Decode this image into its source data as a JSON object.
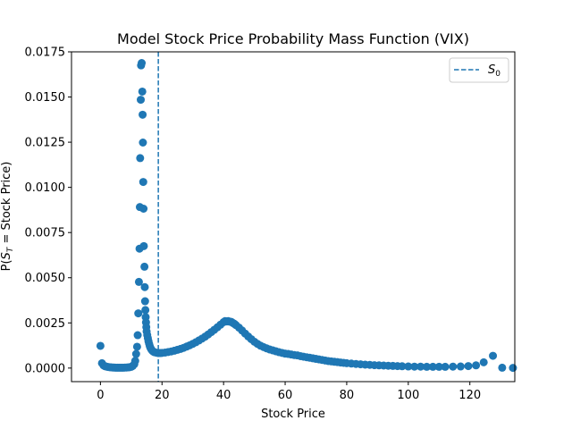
{
  "chart_data": {
    "type": "scatter",
    "title": "Model Stock Price Probability Mass Function (VIX)",
    "xlabel": "Stock Price",
    "ylabel": "P(S_T = Stock Price)",
    "ylabel_parts": {
      "before": "P(",
      "var": "S",
      "sub": "T",
      "after": " = Stock Price)"
    },
    "xlim": [
      -9.4,
      134.6
    ],
    "ylim": [
      -0.00075,
      0.0175
    ],
    "xticks": [
      0,
      20,
      40,
      60,
      80,
      100,
      120
    ],
    "yticks": [
      0.0,
      0.0025,
      0.005,
      0.0075,
      0.01,
      0.0125,
      0.015,
      0.0175
    ],
    "ytick_labels": [
      "0.0000",
      "0.0025",
      "0.0050",
      "0.0075",
      "0.0100",
      "0.0125",
      "0.0150",
      "0.0175"
    ],
    "grid": false,
    "legend": {
      "position": "top-right",
      "entries": [
        {
          "label_var": "S",
          "label_sub": "0",
          "style": "dashed-line"
        }
      ]
    },
    "vline": {
      "x": 18.8,
      "style": "dashed",
      "name": "S_0"
    },
    "color": "#1f77b4",
    "points": [
      [
        0.0,
        0.00123
      ],
      [
        0.5,
        0.00027
      ],
      [
        1.0,
        0.00015
      ],
      [
        1.5,
        0.0001
      ],
      [
        2.0,
        8e-05
      ],
      [
        2.5,
        6e-05
      ],
      [
        3.0,
        5e-05
      ],
      [
        3.5,
        4e-05
      ],
      [
        4.0,
        3e-05
      ],
      [
        4.5,
        3e-05
      ],
      [
        5.0,
        2e-05
      ],
      [
        5.5,
        2e-05
      ],
      [
        6.0,
        2e-05
      ],
      [
        6.5,
        2e-05
      ],
      [
        7.0,
        2e-05
      ],
      [
        7.5,
        2e-05
      ],
      [
        8.0,
        3e-05
      ],
      [
        8.5,
        3e-05
      ],
      [
        9.0,
        4e-05
      ],
      [
        9.5,
        5e-05
      ],
      [
        10.0,
        7e-05
      ],
      [
        10.5,
        0.00012
      ],
      [
        11.0,
        0.00022
      ],
      [
        11.3,
        0.0004
      ],
      [
        11.6,
        0.00078
      ],
      [
        11.9,
        0.00118
      ],
      [
        12.1,
        0.00182
      ],
      [
        12.3,
        0.00303
      ],
      [
        12.5,
        0.00477
      ],
      [
        12.7,
        0.00661
      ],
      [
        12.8,
        0.00891
      ],
      [
        12.9,
        0.01162
      ],
      [
        13.1,
        0.01485
      ],
      [
        13.2,
        0.01675
      ],
      [
        13.4,
        0.01688
      ],
      [
        13.6,
        0.0153
      ],
      [
        13.7,
        0.01402
      ],
      [
        13.8,
        0.01248
      ],
      [
        13.9,
        0.0103
      ],
      [
        14.0,
        0.00882
      ],
      [
        14.1,
        0.00675
      ],
      [
        14.3,
        0.00561
      ],
      [
        14.4,
        0.00448
      ],
      [
        14.5,
        0.0037
      ],
      [
        14.6,
        0.00321
      ],
      [
        14.7,
        0.00282
      ],
      [
        14.8,
        0.00253
      ],
      [
        14.9,
        0.00227
      ],
      [
        15.0,
        0.00203
      ],
      [
        15.2,
        0.00183
      ],
      [
        15.4,
        0.00166
      ],
      [
        15.6,
        0.00149
      ],
      [
        15.8,
        0.00135
      ],
      [
        16.0,
        0.00123
      ],
      [
        16.2,
        0.00113
      ],
      [
        16.5,
        0.00104
      ],
      [
        16.8,
        0.00097
      ],
      [
        17.1,
        0.00092
      ],
      [
        17.5,
        0.00088
      ],
      [
        18.0,
        0.00086
      ],
      [
        18.5,
        0.00084
      ],
      [
        19.0,
        0.00083
      ],
      [
        19.5,
        0.00083
      ],
      [
        20.0,
        0.00084
      ],
      [
        21.0,
        0.00086
      ],
      [
        22.0,
        0.00089
      ],
      [
        23.0,
        0.00092
      ],
      [
        24.0,
        0.00096
      ],
      [
        25.0,
        0.00101
      ],
      [
        26.0,
        0.00106
      ],
      [
        27.0,
        0.00112
      ],
      [
        28.0,
        0.00119
      ],
      [
        29.0,
        0.00126
      ],
      [
        30.0,
        0.00134
      ],
      [
        31.0,
        0.00143
      ],
      [
        32.0,
        0.00153
      ],
      [
        33.0,
        0.00163
      ],
      [
        34.0,
        0.00174
      ],
      [
        35.0,
        0.00186
      ],
      [
        36.0,
        0.00199
      ],
      [
        37.0,
        0.00212
      ],
      [
        38.0,
        0.00226
      ],
      [
        39.0,
        0.0024
      ],
      [
        40.0,
        0.00254
      ],
      [
        40.5,
        0.0026
      ],
      [
        41.0,
        0.00258
      ],
      [
        41.5,
        0.0026
      ],
      [
        42.0,
        0.00257
      ],
      [
        42.5,
        0.00256
      ],
      [
        43.0,
        0.0025
      ],
      [
        43.5,
        0.00245
      ],
      [
        44.0,
        0.00238
      ],
      [
        45.0,
        0.00224
      ],
      [
        46.0,
        0.00208
      ],
      [
        47.0,
        0.00191
      ],
      [
        48.0,
        0.00175
      ],
      [
        49.0,
        0.0016
      ],
      [
        50.0,
        0.00146
      ],
      [
        51.0,
        0.00134
      ],
      [
        52.0,
        0.00124
      ],
      [
        53.0,
        0.00116
      ],
      [
        54.0,
        0.00109
      ],
      [
        55.0,
        0.00103
      ],
      [
        56.0,
        0.00098
      ],
      [
        57.0,
        0.00093
      ],
      [
        58.0,
        0.00088
      ],
      [
        59.0,
        0.00084
      ],
      [
        60.0,
        0.0008
      ],
      [
        61.0,
        0.00078
      ],
      [
        62.0,
        0.00075
      ],
      [
        63.0,
        0.00072
      ],
      [
        64.0,
        0.0007
      ],
      [
        65.0,
        0.00066
      ],
      [
        66.0,
        0.00063
      ],
      [
        67.0,
        0.0006
      ],
      [
        68.0,
        0.00057
      ],
      [
        69.0,
        0.00054
      ],
      [
        70.0,
        0.00051
      ],
      [
        71.0,
        0.00048
      ],
      [
        72.0,
        0.00045
      ],
      [
        73.0,
        0.00042
      ],
      [
        74.0,
        0.00039
      ],
      [
        75.0,
        0.00037
      ],
      [
        76.0,
        0.00035
      ],
      [
        77.0,
        0.00033
      ],
      [
        78.0,
        0.00031
      ],
      [
        79.0,
        0.00029
      ],
      [
        80.0,
        0.00027
      ],
      [
        81.5,
        0.00025
      ],
      [
        83.0,
        0.00023
      ],
      [
        84.5,
        0.00021
      ],
      [
        86.0,
        0.00019
      ],
      [
        87.5,
        0.00018
      ],
      [
        89.0,
        0.00016
      ],
      [
        90.5,
        0.00015
      ],
      [
        92.0,
        0.00014
      ],
      [
        93.5,
        0.00013
      ],
      [
        95.0,
        0.00012
      ],
      [
        96.5,
        0.00011
      ],
      [
        98.0,
        0.0001
      ],
      [
        100.0,
        9e-05
      ],
      [
        102.0,
        8e-05
      ],
      [
        104.0,
        8e-05
      ],
      [
        106.0,
        7e-05
      ],
      [
        108.0,
        7e-05
      ],
      [
        110.0,
        7e-05
      ],
      [
        112.0,
        7e-05
      ],
      [
        114.5,
        8e-05
      ],
      [
        117.0,
        9e-05
      ],
      [
        119.5,
        0.00011
      ],
      [
        122.0,
        0.00015
      ],
      [
        124.5,
        0.00032
      ],
      [
        127.5,
        0.00068
      ],
      [
        130.5,
        2e-05
      ],
      [
        134.0,
        1e-05
      ]
    ]
  }
}
